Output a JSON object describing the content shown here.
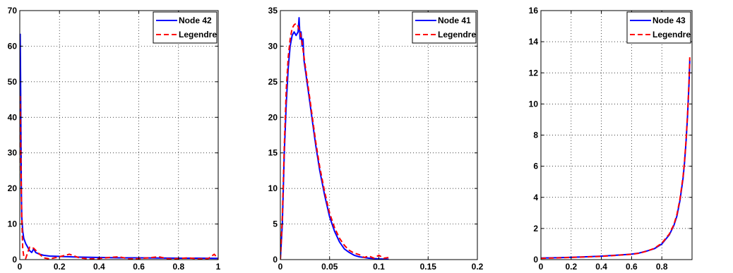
{
  "chart_data": [
    {
      "type": "line",
      "xlim": [
        0,
        1
      ],
      "ylim": [
        0,
        70
      ],
      "xticks": [
        0,
        0.2,
        0.4,
        0.6,
        0.8,
        1
      ],
      "xtick_labels": [
        "0",
        "0.2",
        "0.4",
        "0.6",
        "0.8",
        "1"
      ],
      "yticks": [
        0,
        10,
        20,
        30,
        40,
        50,
        60,
        70
      ],
      "ytick_labels": [
        "0",
        "10",
        "20",
        "30",
        "40",
        "50",
        "60",
        "70"
      ],
      "grid": true,
      "legend_position": "top-right",
      "series": [
        {
          "name": "Node 42",
          "color": "#0000ff",
          "style": "solid",
          "x": [
            0.002,
            0.004,
            0.006,
            0.008,
            0.01,
            0.015,
            0.02,
            0.03,
            0.04,
            0.05,
            0.06,
            0.07,
            0.08,
            0.1,
            0.12,
            0.15,
            0.2,
            0.25,
            0.3,
            0.4,
            0.5,
            0.6,
            0.7,
            0.8,
            0.9,
            1.0
          ],
          "y": [
            63.5,
            52,
            35,
            20,
            12,
            8,
            6,
            4.5,
            3.5,
            2.5,
            2.0,
            3.0,
            2.0,
            1.5,
            1.2,
            1.0,
            0.9,
            0.8,
            0.7,
            0.6,
            0.5,
            0.5,
            0.45,
            0.4,
            0.4,
            0.35
          ]
        },
        {
          "name": "Legendre",
          "color": "#ff0000",
          "style": "dashed",
          "x": [
            0.002,
            0.005,
            0.01,
            0.015,
            0.02,
            0.03,
            0.04,
            0.05,
            0.07,
            0.1,
            0.12,
            0.15,
            0.2,
            0.25,
            0.3,
            0.35,
            0.4,
            0.45,
            0.5,
            0.55,
            0.6,
            0.65,
            0.7,
            0.75,
            0.8,
            0.85,
            0.9,
            0.95,
            0.98,
            1.0
          ],
          "y": [
            46,
            30,
            12,
            3,
            1,
            0.3,
            2,
            3.5,
            3.2,
            1.5,
            0.5,
            0.2,
            0.8,
            1.5,
            0.5,
            0.2,
            0.3,
            0.6,
            0.8,
            0.2,
            0.3,
            0.5,
            0.8,
            0.2,
            0.3,
            0.5,
            0.2,
            0.3,
            1.5,
            0.2
          ]
        }
      ]
    },
    {
      "type": "line",
      "xlim": [
        0,
        0.2
      ],
      "ylim": [
        0,
        35
      ],
      "xticks": [
        0,
        0.05,
        0.1,
        0.15,
        0.2
      ],
      "xtick_labels": [
        "0",
        "0.05",
        "0.1",
        "0.15",
        "0.2"
      ],
      "yticks": [
        0,
        5,
        10,
        15,
        20,
        25,
        30,
        35
      ],
      "ytick_labels": [
        "0",
        "5",
        "10",
        "15",
        "20",
        "25",
        "30",
        "35"
      ],
      "grid": true,
      "legend_position": "top-right",
      "series": [
        {
          "name": "Node 41",
          "color": "#0000ff",
          "style": "solid",
          "x": [
            0,
            0.002,
            0.004,
            0.006,
            0.008,
            0.01,
            0.012,
            0.014,
            0.016,
            0.018,
            0.019,
            0.02,
            0.021,
            0.022,
            0.023,
            0.024,
            0.026,
            0.028,
            0.03,
            0.033,
            0.036,
            0.04,
            0.045,
            0.05,
            0.055,
            0.06,
            0.065,
            0.07,
            0.075,
            0.08,
            0.09,
            0.1,
            0.11
          ],
          "y": [
            0,
            5,
            15,
            22,
            27,
            30,
            31.5,
            32,
            31.5,
            32,
            34,
            31,
            32,
            30,
            31,
            28,
            26,
            24,
            22,
            19,
            16,
            12.5,
            9,
            6,
            4,
            2.5,
            1.5,
            1.0,
            0.6,
            0.4,
            0.2,
            0.1,
            0.05
          ]
        },
        {
          "name": "Legendre",
          "color": "#ff0000",
          "style": "dashed",
          "x": [
            0,
            0.002,
            0.004,
            0.006,
            0.008,
            0.01,
            0.012,
            0.014,
            0.016,
            0.018,
            0.02,
            0.022,
            0.024,
            0.026,
            0.028,
            0.03,
            0.033,
            0.036,
            0.04,
            0.045,
            0.05,
            0.055,
            0.06,
            0.065,
            0.07,
            0.075,
            0.08,
            0.085,
            0.09,
            0.095,
            0.1,
            0.105,
            0.11
          ],
          "y": [
            0,
            6,
            16,
            24,
            28.5,
            31,
            32.5,
            33,
            33.2,
            32.8,
            32,
            30.5,
            28.5,
            26.5,
            24.5,
            22.5,
            19.5,
            16.5,
            13,
            9.5,
            6.5,
            4.5,
            3,
            2,
            1.3,
            0.9,
            0.7,
            0.3,
            0.5,
            0.2,
            0.6,
            0.2,
            0.3
          ]
        }
      ]
    },
    {
      "type": "line",
      "xlim": [
        0,
        1
      ],
      "ylim": [
        0,
        16
      ],
      "xticks": [
        0,
        0.2,
        0.4,
        0.6,
        0.8
      ],
      "xtick_labels": [
        "0",
        "0.2",
        "0.4",
        "0.6",
        "0.8"
      ],
      "yticks": [
        0,
        2,
        4,
        6,
        8,
        10,
        12,
        14,
        16
      ],
      "ytick_labels": [
        "0",
        "2",
        "4",
        "6",
        "8",
        "10",
        "12",
        "14",
        "16"
      ],
      "grid": true,
      "legend_position": "top-right",
      "series": [
        {
          "name": "Node 43",
          "color": "#0000ff",
          "style": "solid",
          "x": [
            0,
            0.1,
            0.2,
            0.3,
            0.4,
            0.5,
            0.6,
            0.65,
            0.7,
            0.75,
            0.8,
            0.85,
            0.88,
            0.9,
            0.92,
            0.94,
            0.95,
            0.96,
            0.97,
            0.975,
            0.98,
            0.985
          ],
          "y": [
            0.1,
            0.12,
            0.15,
            0.18,
            0.22,
            0.28,
            0.35,
            0.42,
            0.55,
            0.7,
            1.0,
            1.6,
            2.2,
            2.8,
            3.8,
            5.2,
            6.2,
            7.5,
            9.2,
            10.2,
            11.3,
            12.8
          ]
        },
        {
          "name": "Legendre",
          "color": "#ff0000",
          "style": "dashed",
          "x": [
            0,
            0.1,
            0.2,
            0.3,
            0.4,
            0.5,
            0.6,
            0.65,
            0.7,
            0.75,
            0.8,
            0.85,
            0.88,
            0.9,
            0.92,
            0.94,
            0.95,
            0.96,
            0.97,
            0.975,
            0.98,
            0.985
          ],
          "y": [
            0.08,
            0.11,
            0.14,
            0.17,
            0.21,
            0.27,
            0.34,
            0.41,
            0.54,
            0.72,
            1.05,
            1.65,
            2.25,
            2.9,
            3.9,
            5.3,
            6.3,
            7.6,
            9.3,
            10.3,
            11.4,
            13.0
          ]
        }
      ]
    }
  ]
}
